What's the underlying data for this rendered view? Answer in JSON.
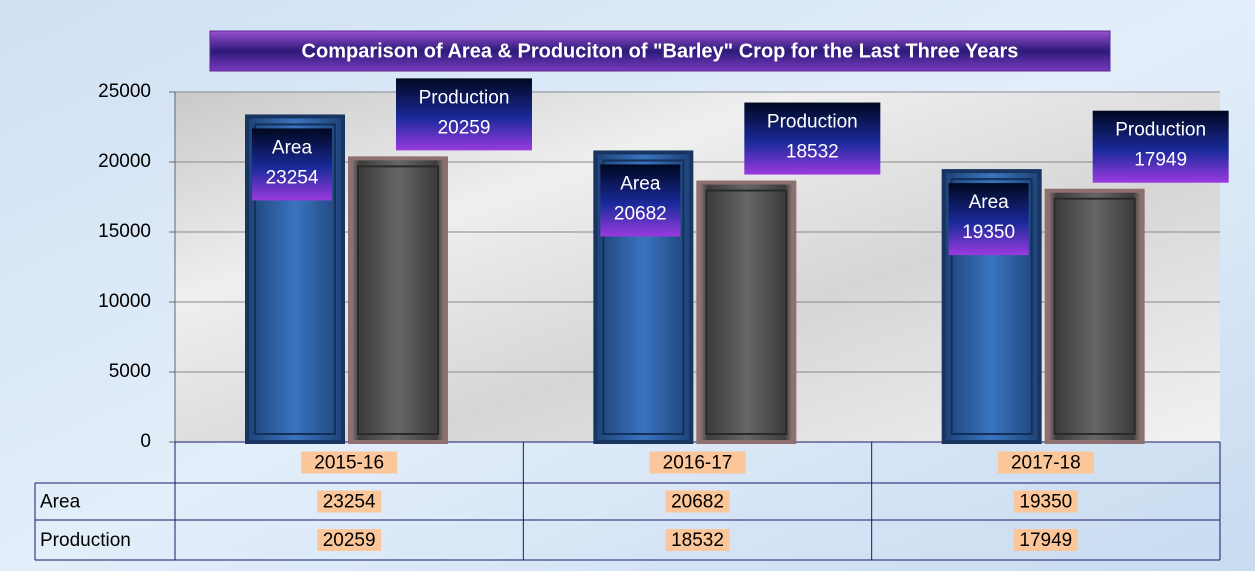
{
  "chart_data": {
    "type": "bar",
    "title": "Comparison of Area & Produciton of  \"Barley\" Crop  for the Last Three Years",
    "categories": [
      "2015-16",
      "2016-17",
      "2017-18"
    ],
    "series": [
      {
        "name": "Area",
        "color": "#2f62a8",
        "values": [
          23254,
          20682,
          19350
        ]
      },
      {
        "name": "Production",
        "color": "#555555",
        "values": [
          20259,
          18532,
          17949
        ]
      }
    ],
    "ylim": [
      0,
      25000
    ],
    "yticks": [
      0,
      5000,
      10000,
      15000,
      20000,
      25000
    ],
    "grid": true
  }
}
